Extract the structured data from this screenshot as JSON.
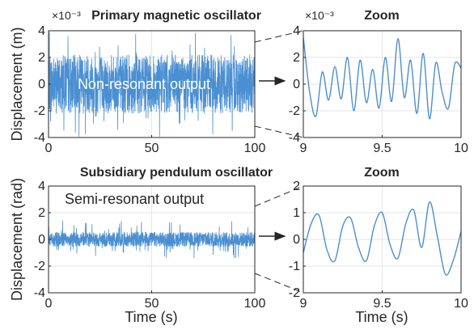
{
  "colors": {
    "line": "#4a8fd1",
    "axis": "#262626",
    "grid": "#e6e6e6",
    "annot_text_on_fill": "#ffffff"
  },
  "chart_data": [
    {
      "type": "line",
      "title": "Primary magnetic oscillator",
      "ylabel": "Displacement (m)",
      "xlabel": "",
      "xlim": [
        0,
        100
      ],
      "ylim": [
        -4,
        4
      ],
      "xticks": [
        "0",
        "50",
        "100"
      ],
      "yticks": [
        "-4",
        "-2",
        "0",
        "2",
        "4"
      ],
      "y_multiplier": "×10⁻³",
      "annotation": "Non-resonant output",
      "signal": "broadband noise, amplitude about ±2 to ±4 ×10⁻³ m over 0–100 s",
      "grid": true
    },
    {
      "type": "line",
      "title": "Zoom",
      "xlim": [
        9,
        10
      ],
      "ylim": [
        -4,
        4
      ],
      "xticks": [
        "9",
        "9.5",
        "10"
      ],
      "yticks": [
        "-4",
        "-2",
        "0",
        "2",
        "4"
      ],
      "y_multiplier": "×10⁻³",
      "x": [
        9.0,
        9.04,
        9.08,
        9.12,
        9.16,
        9.2,
        9.24,
        9.28,
        9.32,
        9.36,
        9.4,
        9.44,
        9.48,
        9.52,
        9.56,
        9.6,
        9.64,
        9.68,
        9.72,
        9.76,
        9.8,
        9.84,
        9.88,
        9.92,
        9.96,
        10.0
      ],
      "y": [
        3.5,
        -0.6,
        -2.4,
        0.9,
        -1.2,
        1.3,
        -1.1,
        2.0,
        -2.0,
        1.8,
        -1.4,
        1.1,
        -1.8,
        2.0,
        -1.3,
        3.4,
        -1.0,
        1.8,
        -2.2,
        2.3,
        -2.6,
        1.6,
        -0.6,
        -1.8,
        1.5,
        1.2
      ],
      "grid": true
    },
    {
      "type": "line",
      "title": "Subsidiary pendulum oscillator",
      "ylabel": "Displacement (rad)",
      "xlabel": "Time (s)",
      "xlim": [
        0,
        100
      ],
      "ylim": [
        -4,
        4
      ],
      "xticks": [
        "0",
        "50",
        "100"
      ],
      "yticks": [
        "-4",
        "-2",
        "0",
        "2",
        "4"
      ],
      "annotation": "Semi-resonant output",
      "signal": "noise, amplitude about ±0.5 to ±2 rad over 0–100 s",
      "grid": true
    },
    {
      "type": "line",
      "title": "Zoom",
      "xlabel": "Time (s)",
      "xlim": [
        9,
        10
      ],
      "ylim": [
        -2,
        2
      ],
      "xticks": [
        "9",
        "9.5",
        "10"
      ],
      "yticks": [
        "-2",
        "-1",
        "0",
        "1",
        "2"
      ],
      "x": [
        9.0,
        9.05,
        9.1,
        9.15,
        9.2,
        9.25,
        9.3,
        9.35,
        9.4,
        9.45,
        9.5,
        9.55,
        9.6,
        9.65,
        9.7,
        9.75,
        9.8,
        9.85,
        9.9,
        9.95,
        10.0
      ],
      "y": [
        -0.5,
        0.6,
        0.9,
        -0.4,
        -0.8,
        0.5,
        0.8,
        -0.3,
        -0.8,
        0.5,
        1.0,
        -0.2,
        -0.7,
        0.6,
        1.1,
        -0.3,
        1.4,
        0.1,
        -1.3,
        -0.8,
        0.3
      ],
      "grid": true
    }
  ]
}
